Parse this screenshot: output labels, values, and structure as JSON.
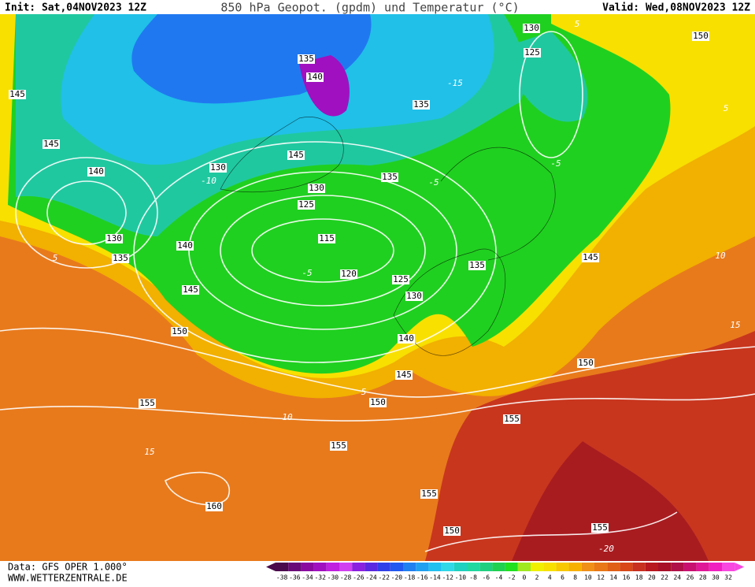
{
  "header": {
    "init": "Init: Sat,04NOV2023 12Z",
    "title": "850 hPa Geopot. (gpdm) und Temperatur (°C)",
    "valid": "Valid: Wed,08NOV2023 12Z"
  },
  "geopotential_labels": [
    145,
    145,
    140,
    130,
    135,
    140,
    145,
    150,
    155,
    160,
    155,
    150,
    145,
    140,
    130,
    125,
    120,
    115,
    125,
    130,
    130,
    135,
    135,
    145,
    140,
    135,
    130,
    125,
    150,
    145,
    135,
    150,
    155,
    155,
    150,
    155
  ],
  "temperature_labels": [
    5,
    10,
    15,
    -10,
    -5,
    -15,
    -5,
    5,
    5,
    10,
    15,
    -20,
    -5,
    5
  ],
  "colorbar": {
    "labels": [
      -38,
      -36,
      -34,
      -32,
      -30,
      -28,
      -26,
      -24,
      -22,
      -20,
      -18,
      -16,
      -14,
      -12,
      -10,
      -8,
      -6,
      -4,
      -2,
      0,
      2,
      4,
      6,
      8,
      10,
      12,
      14,
      16,
      18,
      20,
      22,
      24,
      26,
      28,
      30,
      32
    ],
    "colors": [
      "#4b0a4b",
      "#6a0a78",
      "#8a0aa0",
      "#a010c0",
      "#c020e0",
      "#d040f0",
      "#8a20e0",
      "#5a28e0",
      "#3040e8",
      "#2058f0",
      "#2080f0",
      "#20a0f0",
      "#20c0f0",
      "#30d8e8",
      "#20d0c0",
      "#20d8a0",
      "#20d080",
      "#20d050",
      "#20e020",
      "#a0e820",
      "#f0f000",
      "#f8e000",
      "#f8c800",
      "#f8b000",
      "#f09018",
      "#e87818",
      "#e06018",
      "#d84818",
      "#c83020",
      "#b81820",
      "#a81028",
      "#b01048",
      "#c81070",
      "#e01898",
      "#f020c0",
      "#f848e0"
    ]
  },
  "footer": {
    "data": "Data: GFS OPER 1.000°",
    "site": "WWW.WETTERZENTRALE.DE"
  }
}
